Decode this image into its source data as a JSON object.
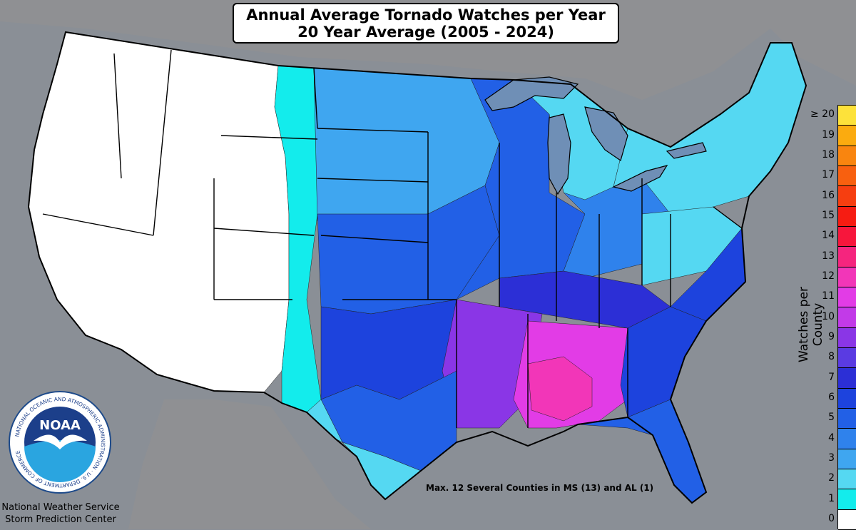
{
  "title": {
    "line1": "Annual Average Tornado Watches per Year",
    "line2": "20 Year Average (2005 - 2024)"
  },
  "annotation": "Max. 12 Several Counties in MS (13) and AL (1)",
  "credit": {
    "line1": "National Weather Service",
    "line2": "Storm Prediction Center"
  },
  "logo": {
    "name": "NOAA",
    "ring_text": "NATIONAL OCEANIC AND ATMOSPHERIC ADMINISTRATION · U.S. DEPARTMENT OF COMMERCE"
  },
  "legend": {
    "title": "Watches per County",
    "levels": [
      {
        "label": "0",
        "color": "#ffffff"
      },
      {
        "label": "1",
        "color": "#13ecec"
      },
      {
        "label": "2",
        "color": "#55d8f2"
      },
      {
        "label": "3",
        "color": "#3fa6f0"
      },
      {
        "label": "4",
        "color": "#2f82ec"
      },
      {
        "label": "5",
        "color": "#2260e6"
      },
      {
        "label": "6",
        "color": "#1d43dd"
      },
      {
        "label": "7",
        "color": "#2c2fd6"
      },
      {
        "label": "8",
        "color": "#5a3be2"
      },
      {
        "label": "9",
        "color": "#8a36e6"
      },
      {
        "label": "10",
        "color": "#c23ae8"
      },
      {
        "label": "11",
        "color": "#e23ce6"
      },
      {
        "label": "12",
        "color": "#f236b8"
      },
      {
        "label": "13",
        "color": "#f5257e"
      },
      {
        "label": "14",
        "color": "#f7163c"
      },
      {
        "label": "15",
        "color": "#f61c12"
      },
      {
        "label": "16",
        "color": "#f63e10"
      },
      {
        "label": "17",
        "color": "#f8600f"
      },
      {
        "label": "18",
        "color": "#f9850f"
      },
      {
        "label": "19",
        "color": "#fbab0f"
      },
      {
        "label": "≥ 20",
        "color": "#fde23a"
      }
    ]
  },
  "colors": {
    "ocean": "#8a8f96",
    "land_outside": "#8f9093",
    "lakes": "#6f8fb6"
  },
  "regions": [
    {
      "id": "west",
      "level": 0
    },
    {
      "id": "high-plains-edge",
      "level": 1
    },
    {
      "id": "northern-plains",
      "level": 3
    },
    {
      "id": "central-plains",
      "level": 5
    },
    {
      "id": "midwest",
      "level": 5
    },
    {
      "id": "ohio-valley",
      "level": 4
    },
    {
      "id": "great-lakes-north",
      "level": 2
    },
    {
      "id": "northeast",
      "level": 2
    },
    {
      "id": "appalachia",
      "level": 2
    },
    {
      "id": "mid-atlantic-coast",
      "level": 6
    },
    {
      "id": "southern-plains",
      "level": 6
    },
    {
      "id": "tennessee-valley",
      "level": 7
    },
    {
      "id": "arkansas-louisiana",
      "level": 9
    },
    {
      "id": "mississippi-alabama",
      "level": 11
    },
    {
      "id": "deep-south-max",
      "level": 12
    },
    {
      "id": "georgia-carolinas",
      "level": 6
    },
    {
      "id": "florida",
      "level": 5
    },
    {
      "id": "texas-central",
      "level": 5
    },
    {
      "id": "texas-west",
      "level": 2
    },
    {
      "id": "texas-south",
      "level": 2
    }
  ]
}
